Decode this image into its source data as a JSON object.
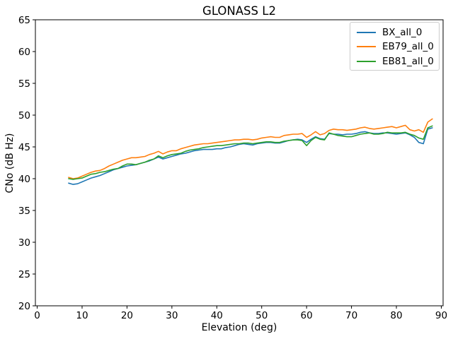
{
  "figure": {
    "background": "#ffffff",
    "spine_color": "#000000"
  },
  "chart_data": {
    "type": "line",
    "title": "GLONASS L2",
    "xlabel": "Elevation (deg)",
    "ylabel": "CNo (dB Hz)",
    "xlim": [
      -0.4,
      90.4
    ],
    "ylim": [
      20,
      65
    ],
    "xticks": [
      0,
      10,
      20,
      30,
      40,
      50,
      60,
      70,
      80,
      90
    ],
    "yticks": [
      20,
      25,
      30,
      35,
      40,
      45,
      50,
      55,
      60,
      65
    ],
    "grid": false,
    "legend_position": "upper right",
    "x": [
      7,
      8,
      9,
      10,
      11,
      12,
      13,
      14,
      15,
      16,
      17,
      18,
      19,
      20,
      21,
      22,
      23,
      24,
      25,
      26,
      27,
      28,
      29,
      30,
      31,
      32,
      33,
      34,
      35,
      36,
      37,
      38,
      39,
      40,
      41,
      42,
      43,
      44,
      45,
      46,
      47,
      48,
      49,
      50,
      51,
      52,
      53,
      54,
      55,
      56,
      57,
      58,
      59,
      60,
      61,
      62,
      63,
      64,
      65,
      66,
      67,
      68,
      69,
      70,
      71,
      72,
      73,
      74,
      75,
      76,
      77,
      78,
      79,
      80,
      81,
      82,
      83,
      84,
      85,
      86,
      87,
      88
    ],
    "series": [
      {
        "name": "BX_all_0",
        "color": "#1f77b4",
        "values": [
          39.3,
          39.1,
          39.2,
          39.5,
          39.8,
          40.1,
          40.3,
          40.5,
          40.8,
          41.1,
          41.4,
          41.6,
          41.8,
          42.0,
          42.1,
          42.2,
          42.4,
          42.6,
          42.8,
          43.1,
          43.4,
          43.1,
          43.3,
          43.5,
          43.7,
          43.9,
          44.0,
          44.2,
          44.4,
          44.5,
          44.6,
          44.6,
          44.6,
          44.7,
          44.7,
          44.9,
          45.0,
          45.2,
          45.4,
          45.5,
          45.4,
          45.3,
          45.5,
          45.6,
          45.7,
          45.7,
          45.6,
          45.6,
          45.8,
          46.0,
          46.1,
          46.2,
          46.1,
          45.7,
          46.2,
          46.6,
          46.3,
          46.2,
          47.1,
          47.0,
          47.0,
          46.9,
          47.0,
          47.0,
          47.1,
          47.3,
          47.4,
          47.2,
          47.1,
          47.1,
          47.2,
          47.2,
          47.1,
          47.0,
          47.1,
          47.2,
          46.9,
          46.5,
          45.7,
          45.5,
          47.8,
          48.0
        ]
      },
      {
        "name": "EB79_all_0",
        "color": "#ff7f0e",
        "values": [
          40.2,
          40.0,
          40.1,
          40.4,
          40.7,
          41.0,
          41.2,
          41.3,
          41.6,
          42.0,
          42.3,
          42.6,
          42.9,
          43.1,
          43.3,
          43.3,
          43.4,
          43.5,
          43.8,
          44.0,
          44.3,
          43.9,
          44.2,
          44.4,
          44.4,
          44.7,
          44.9,
          45.1,
          45.3,
          45.4,
          45.5,
          45.5,
          45.6,
          45.7,
          45.8,
          45.9,
          46.0,
          46.1,
          46.1,
          46.2,
          46.2,
          46.1,
          46.2,
          46.4,
          46.5,
          46.6,
          46.5,
          46.5,
          46.8,
          46.9,
          47.0,
          47.0,
          47.1,
          46.5,
          46.9,
          47.4,
          46.9,
          47.1,
          47.6,
          47.8,
          47.7,
          47.7,
          47.6,
          47.7,
          47.8,
          48.0,
          48.1,
          47.9,
          47.8,
          47.9,
          48.0,
          48.1,
          48.2,
          48.0,
          48.2,
          48.4,
          47.7,
          47.5,
          47.7,
          47.3,
          48.9,
          49.4
        ]
      },
      {
        "name": "EB81_all_0",
        "color": "#2ca02c",
        "values": [
          40.0,
          39.9,
          40.0,
          40.1,
          40.4,
          40.7,
          40.8,
          41.0,
          41.1,
          41.3,
          41.5,
          41.6,
          42.0,
          42.3,
          42.3,
          42.2,
          42.4,
          42.6,
          42.9,
          43.1,
          43.6,
          43.3,
          43.6,
          43.8,
          43.9,
          44.0,
          44.3,
          44.5,
          44.6,
          44.7,
          44.9,
          45.0,
          45.1,
          45.2,
          45.2,
          45.3,
          45.4,
          45.5,
          45.5,
          45.6,
          45.6,
          45.5,
          45.6,
          45.7,
          45.8,
          45.8,
          45.7,
          45.7,
          45.9,
          46.0,
          46.1,
          46.1,
          46.0,
          45.2,
          46.0,
          46.5,
          46.2,
          46.1,
          47.2,
          47.0,
          46.8,
          46.7,
          46.6,
          46.6,
          46.8,
          47.0,
          47.1,
          47.2,
          47.0,
          47.0,
          47.1,
          47.3,
          47.2,
          47.2,
          47.2,
          47.3,
          47.0,
          46.8,
          46.4,
          46.2,
          48.0,
          48.3
        ]
      }
    ]
  }
}
